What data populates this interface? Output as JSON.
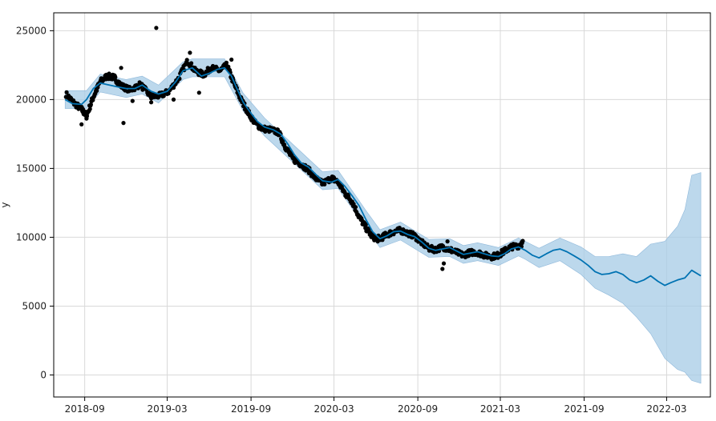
{
  "chart_data": {
    "type": "line",
    "title": "",
    "xlabel": "",
    "ylabel": "y",
    "xlim": [
      "2018-06-25",
      "2022-06-05"
    ],
    "ylim": [
      -1600,
      26300
    ],
    "grid": true,
    "x_ticks": [
      "2018-09",
      "2019-03",
      "2019-09",
      "2020-03",
      "2020-09",
      "2021-03",
      "2021-09",
      "2022-03"
    ],
    "y_ticks": [
      0,
      5000,
      10000,
      15000,
      20000,
      25000
    ],
    "colors": {
      "forecast_line": "#0072B2",
      "uncertainty_band": "#A6CBE6",
      "points": "#000000",
      "grid": "#d9d9d9",
      "frame": "#000000"
    },
    "history_end": "2021-04-25",
    "forecast_end": "2022-05-15",
    "forecast": [
      [
        "2018-07-20",
        20000
      ],
      [
        "2018-08-05",
        19700
      ],
      [
        "2018-08-25",
        19650
      ],
      [
        "2018-09-05",
        20000
      ],
      [
        "2018-09-20",
        20800
      ],
      [
        "2018-10-05",
        21200
      ],
      [
        "2018-10-25",
        21050
      ],
      [
        "2018-11-15",
        20900
      ],
      [
        "2018-12-01",
        20800
      ],
      [
        "2018-12-20",
        20800
      ],
      [
        "2019-01-05",
        21050
      ],
      [
        "2019-01-25",
        20600
      ],
      [
        "2019-02-10",
        20400
      ],
      [
        "2019-03-01",
        20600
      ],
      [
        "2019-03-20",
        21300
      ],
      [
        "2019-04-05",
        22100
      ],
      [
        "2019-04-25",
        22300
      ],
      [
        "2019-05-15",
        21700
      ],
      [
        "2019-06-01",
        21900
      ],
      [
        "2019-06-20",
        22200
      ],
      [
        "2019-07-05",
        22300
      ],
      [
        "2019-07-20",
        21700
      ],
      [
        "2019-08-01",
        20800
      ],
      [
        "2019-08-15",
        19800
      ],
      [
        "2019-09-01",
        19000
      ],
      [
        "2019-09-15",
        18400
      ],
      [
        "2019-10-01",
        18000
      ],
      [
        "2019-10-20",
        17800
      ],
      [
        "2019-11-05",
        17500
      ],
      [
        "2019-11-20",
        16800
      ],
      [
        "2019-12-05",
        16000
      ],
      [
        "2019-12-20",
        15400
      ],
      [
        "2020-01-05",
        15100
      ],
      [
        "2020-01-20",
        14600
      ],
      [
        "2020-02-05",
        14100
      ],
      [
        "2020-02-25",
        14000
      ],
      [
        "2020-03-10",
        14200
      ],
      [
        "2020-03-25",
        13700
      ],
      [
        "2020-04-10",
        13000
      ],
      [
        "2020-04-25",
        12300
      ],
      [
        "2020-05-10",
        11300
      ],
      [
        "2020-05-25",
        10400
      ],
      [
        "2020-06-10",
        9900
      ],
      [
        "2020-06-25",
        10100
      ],
      [
        "2020-07-10",
        10400
      ],
      [
        "2020-07-25",
        10450
      ],
      [
        "2020-08-10",
        10200
      ],
      [
        "2020-08-25",
        10050
      ],
      [
        "2020-09-10",
        9650
      ],
      [
        "2020-09-25",
        9200
      ],
      [
        "2020-10-10",
        9050
      ],
      [
        "2020-10-25",
        9150
      ],
      [
        "2020-11-10",
        9250
      ],
      [
        "2020-11-25",
        9000
      ],
      [
        "2020-12-10",
        8750
      ],
      [
        "2020-12-25",
        8850
      ],
      [
        "2021-01-10",
        8950
      ],
      [
        "2021-01-25",
        8800
      ],
      [
        "2021-02-10",
        8650
      ],
      [
        "2021-02-25",
        8600
      ],
      [
        "2021-03-10",
        8800
      ],
      [
        "2021-03-25",
        9150
      ],
      [
        "2021-04-10",
        9300
      ],
      [
        "2021-04-25",
        9050
      ],
      [
        "2021-05-10",
        8700
      ],
      [
        "2021-05-25",
        8500
      ],
      [
        "2021-06-10",
        8800
      ],
      [
        "2021-06-25",
        9050
      ],
      [
        "2021-07-10",
        9150
      ],
      [
        "2021-07-25",
        8950
      ],
      [
        "2021-08-10",
        8650
      ],
      [
        "2021-08-25",
        8350
      ],
      [
        "2021-09-10",
        7950
      ],
      [
        "2021-09-25",
        7500
      ],
      [
        "2021-10-10",
        7300
      ],
      [
        "2021-10-25",
        7350
      ],
      [
        "2021-11-10",
        7500
      ],
      [
        "2021-11-25",
        7300
      ],
      [
        "2021-12-10",
        6900
      ],
      [
        "2021-12-25",
        6700
      ],
      [
        "2022-01-10",
        6900
      ],
      [
        "2022-01-25",
        7200
      ],
      [
        "2022-02-10",
        6800
      ],
      [
        "2022-02-25",
        6500
      ],
      [
        "2022-03-10",
        6700
      ],
      [
        "2022-03-25",
        6900
      ],
      [
        "2022-04-10",
        7050
      ],
      [
        "2022-04-25",
        7600
      ],
      [
        "2022-05-15",
        7200
      ]
    ],
    "band_upper": [
      [
        "2018-07-20",
        20650
      ],
      [
        "2018-09-05",
        20650
      ],
      [
        "2018-10-05",
        21850
      ],
      [
        "2018-12-01",
        21450
      ],
      [
        "2019-01-05",
        21700
      ],
      [
        "2019-02-10",
        21050
      ],
      [
        "2019-04-05",
        22750
      ],
      [
        "2019-04-25",
        22950
      ],
      [
        "2019-07-05",
        22950
      ],
      [
        "2019-08-15",
        20450
      ],
      [
        "2019-10-01",
        18650
      ],
      [
        "2019-12-05",
        16650
      ],
      [
        "2020-02-05",
        14750
      ],
      [
        "2020-03-10",
        14850
      ],
      [
        "2020-05-10",
        11950
      ],
      [
        "2020-06-10",
        10550
      ],
      [
        "2020-07-25",
        11100
      ],
      [
        "2020-09-25",
        9850
      ],
      [
        "2020-11-10",
        9900
      ],
      [
        "2020-12-10",
        9400
      ],
      [
        "2021-01-10",
        9600
      ],
      [
        "2021-02-25",
        9250
      ],
      [
        "2021-04-10",
        9950
      ],
      [
        "2021-04-25",
        9700
      ],
      [
        "2021-05-25",
        9200
      ],
      [
        "2021-07-10",
        9950
      ],
      [
        "2021-08-25",
        9300
      ],
      [
        "2021-09-25",
        8600
      ],
      [
        "2021-10-25",
        8600
      ],
      [
        "2021-11-25",
        8800
      ],
      [
        "2021-12-25",
        8600
      ],
      [
        "2022-01-25",
        9500
      ],
      [
        "2022-02-25",
        9700
      ],
      [
        "2022-03-25",
        10800
      ],
      [
        "2022-04-10",
        12000
      ],
      [
        "2022-04-25",
        14500
      ],
      [
        "2022-05-15",
        14700
      ]
    ],
    "band_lower": [
      [
        "2018-07-20",
        19350
      ],
      [
        "2018-09-05",
        19350
      ],
      [
        "2018-10-05",
        20550
      ],
      [
        "2018-12-01",
        20150
      ],
      [
        "2019-01-05",
        20400
      ],
      [
        "2019-02-10",
        19750
      ],
      [
        "2019-04-05",
        21450
      ],
      [
        "2019-04-25",
        21650
      ],
      [
        "2019-07-05",
        21650
      ],
      [
        "2019-08-15",
        19150
      ],
      [
        "2019-10-01",
        17350
      ],
      [
        "2019-12-05",
        15350
      ],
      [
        "2020-02-05",
        13450
      ],
      [
        "2020-03-10",
        13550
      ],
      [
        "2020-05-10",
        10650
      ],
      [
        "2020-06-10",
        9250
      ],
      [
        "2020-07-25",
        9800
      ],
      [
        "2020-09-25",
        8550
      ],
      [
        "2020-11-10",
        8600
      ],
      [
        "2020-12-10",
        8100
      ],
      [
        "2021-01-10",
        8300
      ],
      [
        "2021-02-25",
        7950
      ],
      [
        "2021-04-10",
        8650
      ],
      [
        "2021-04-25",
        8400
      ],
      [
        "2021-05-25",
        7800
      ],
      [
        "2021-07-10",
        8300
      ],
      [
        "2021-08-25",
        7300
      ],
      [
        "2021-09-25",
        6300
      ],
      [
        "2021-10-25",
        5800
      ],
      [
        "2021-11-25",
        5200
      ],
      [
        "2021-12-25",
        4200
      ],
      [
        "2022-01-25",
        3000
      ],
      [
        "2022-02-25",
        1200
      ],
      [
        "2022-03-25",
        400
      ],
      [
        "2022-04-10",
        200
      ],
      [
        "2022-04-25",
        -400
      ],
      [
        "2022-05-15",
        -600
      ]
    ],
    "observed_path": [
      [
        "2018-07-22",
        20400
      ],
      [
        "2018-08-10",
        19700
      ],
      [
        "2018-08-25",
        19300
      ],
      [
        "2018-09-05",
        18800
      ],
      [
        "2018-09-20",
        20200
      ],
      [
        "2018-10-05",
        21300
      ],
      [
        "2018-10-20",
        21700
      ],
      [
        "2018-11-05",
        21600
      ],
      [
        "2018-11-20",
        21000
      ],
      [
        "2018-12-10",
        20700
      ],
      [
        "2019-01-01",
        21100
      ],
      [
        "2019-01-25",
        20200
      ],
      [
        "2019-02-15",
        20300
      ],
      [
        "2019-03-05",
        20600
      ],
      [
        "2019-03-25",
        21500
      ],
      [
        "2019-04-15",
        22800
      ],
      [
        "2019-05-01",
        22100
      ],
      [
        "2019-05-20",
        21800
      ],
      [
        "2019-06-05",
        22300
      ],
      [
        "2019-06-25",
        22100
      ],
      [
        "2019-07-10",
        22500
      ],
      [
        "2019-07-25",
        21200
      ],
      [
        "2019-08-10",
        20000
      ],
      [
        "2019-08-25",
        19100
      ],
      [
        "2019-09-10",
        18300
      ],
      [
        "2019-09-25",
        17900
      ],
      [
        "2019-10-15",
        17800
      ],
      [
        "2019-11-01",
        17600
      ],
      [
        "2019-11-15",
        16600
      ],
      [
        "2019-12-01",
        15700
      ],
      [
        "2019-12-20",
        15300
      ],
      [
        "2020-01-05",
        14900
      ],
      [
        "2020-01-20",
        14300
      ],
      [
        "2020-02-05",
        13900
      ],
      [
        "2020-02-25",
        14300
      ],
      [
        "2020-03-10",
        14000
      ],
      [
        "2020-03-25",
        13200
      ],
      [
        "2020-04-10",
        12600
      ],
      [
        "2020-04-25",
        11500
      ],
      [
        "2020-05-10",
        10700
      ],
      [
        "2020-05-25",
        10000
      ],
      [
        "2020-06-10",
        9900
      ],
      [
        "2020-06-25",
        10200
      ],
      [
        "2020-07-10",
        10400
      ],
      [
        "2020-07-25",
        10500
      ],
      [
        "2020-08-10",
        10300
      ],
      [
        "2020-08-25",
        10100
      ],
      [
        "2020-09-10",
        9600
      ],
      [
        "2020-09-25",
        9200
      ],
      [
        "2020-10-10",
        9100
      ],
      [
        "2020-10-25",
        9300
      ],
      [
        "2020-11-10",
        9100
      ],
      [
        "2020-11-25",
        8900
      ],
      [
        "2020-12-10",
        8700
      ],
      [
        "2020-12-25",
        8900
      ],
      [
        "2021-01-10",
        8900
      ],
      [
        "2021-01-25",
        8700
      ],
      [
        "2021-02-10",
        8600
      ],
      [
        "2021-02-25",
        8700
      ],
      [
        "2021-03-10",
        9000
      ],
      [
        "2021-03-25",
        9300
      ],
      [
        "2021-04-10",
        9400
      ],
      [
        "2021-04-20",
        9600
      ]
    ],
    "observed_outliers": [
      [
        "2019-02-05",
        25200
      ],
      [
        "2018-11-25",
        18300
      ],
      [
        "2018-08-25",
        18200
      ],
      [
        "2018-11-20",
        22300
      ],
      [
        "2018-12-15",
        19900
      ],
      [
        "2019-05-10",
        20500
      ],
      [
        "2019-04-20",
        23400
      ],
      [
        "2019-07-20",
        22900
      ],
      [
        "2020-10-25",
        7700
      ],
      [
        "2020-10-28",
        8100
      ],
      [
        "2020-11-05",
        9700
      ],
      [
        "2019-11-25",
        16200
      ],
      [
        "2020-06-05",
        9700
      ],
      [
        "2018-09-05",
        18700
      ],
      [
        "2019-01-25",
        19800
      ],
      [
        "2019-03-15",
        20000
      ]
    ]
  }
}
